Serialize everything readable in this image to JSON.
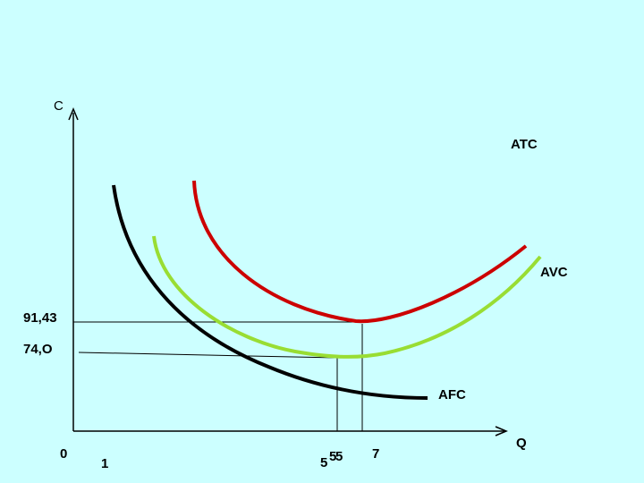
{
  "axes": {
    "y_label": "C",
    "x_label": "Q"
  },
  "curves": {
    "atc": "ATC",
    "avc": "AVC",
    "afc": "AFC"
  },
  "y_marks": [
    "91,43",
    "74,O"
  ],
  "x_marks": [
    "0",
    "1",
    "5",
    "5",
    "5",
    "7"
  ]
}
